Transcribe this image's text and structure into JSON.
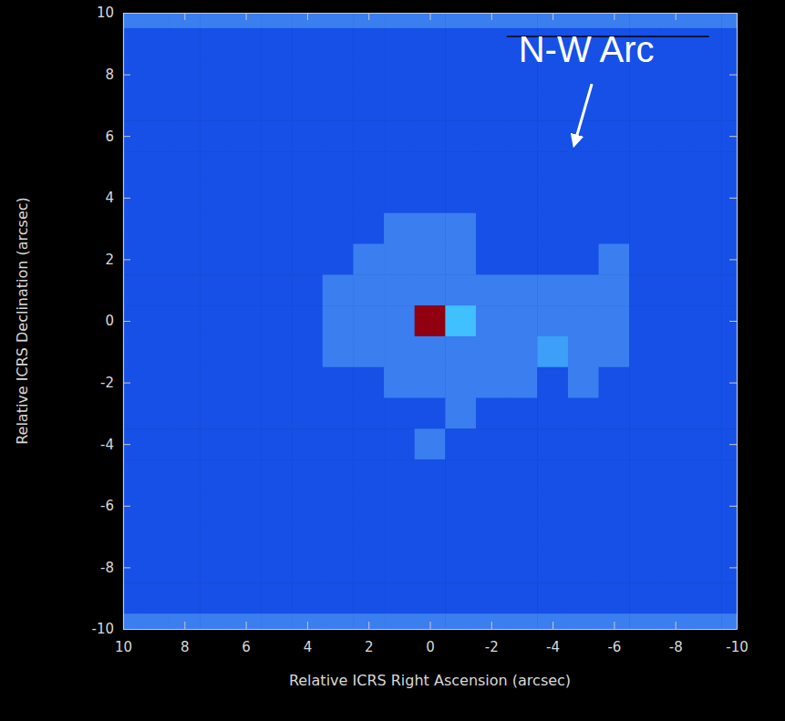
{
  "chart_data": {
    "type": "heatmap",
    "xlabel": "Relative ICRS Right Ascension (arcsec)",
    "ylabel": "Relative ICRS Declination (arcsec)",
    "xlim": [
      10,
      -10
    ],
    "ylim": [
      -10,
      10
    ],
    "xticks": [
      10,
      8,
      6,
      4,
      2,
      0,
      -2,
      -4,
      -6,
      -8,
      -10
    ],
    "yticks": [
      -10,
      -8,
      -6,
      -4,
      -2,
      0,
      2,
      4,
      6,
      8,
      10
    ],
    "x": [
      10,
      9,
      8,
      7,
      6,
      5,
      4,
      3,
      2,
      1,
      0,
      -1,
      -2,
      -3,
      -4,
      -5,
      -6,
      -7,
      -8,
      -9,
      -10
    ],
    "y": [
      10,
      9,
      8,
      7,
      6,
      5,
      4,
      3,
      2,
      1,
      0,
      -1,
      -2,
      -3,
      -4,
      -5,
      -6,
      -7,
      -8,
      -9,
      -10
    ],
    "z": [
      [
        1,
        1,
        1,
        1,
        1,
        1,
        1,
        1,
        1,
        1,
        1,
        1,
        1,
        1,
        1,
        1,
        1,
        1,
        1,
        1,
        1
      ],
      [
        0,
        0,
        0,
        0,
        0,
        0,
        0,
        0,
        0,
        0,
        0,
        0,
        0,
        0,
        0,
        0,
        0,
        0,
        0,
        0,
        0
      ],
      [
        0,
        0,
        0,
        0,
        0,
        0,
        0,
        0,
        0,
        0,
        0,
        0,
        0,
        0,
        0,
        0,
        0,
        0,
        0,
        0,
        0
      ],
      [
        0,
        0,
        0,
        0,
        0,
        0,
        0,
        0,
        0,
        0,
        0,
        0,
        0,
        0,
        0,
        0,
        0,
        0,
        0,
        0,
        0
      ],
      [
        0,
        0,
        0,
        0,
        0,
        0,
        0,
        0,
        0,
        0,
        0,
        0,
        0,
        0,
        0,
        0,
        0,
        0,
        0,
        0,
        0
      ],
      [
        0,
        0,
        0,
        0,
        0,
        0,
        0,
        0,
        0,
        0,
        0,
        0,
        0,
        0,
        0,
        0,
        0,
        0,
        0,
        0,
        0
      ],
      [
        0,
        0,
        0,
        0,
        0,
        0,
        0,
        0,
        0,
        0,
        0,
        0,
        0,
        0,
        0,
        0,
        0,
        0,
        0,
        0,
        0
      ],
      [
        0,
        0,
        0,
        0,
        0,
        0,
        0,
        0,
        0,
        1,
        1,
        1,
        0,
        0,
        0,
        0,
        0,
        0,
        0,
        0,
        0
      ],
      [
        0,
        0,
        0,
        0,
        0,
        0,
        0,
        0,
        1,
        1,
        1,
        1,
        0,
        0,
        0,
        0,
        1,
        0,
        0,
        0,
        0
      ],
      [
        0,
        0,
        0,
        0,
        0,
        0,
        0,
        1,
        1,
        1,
        1,
        1,
        1,
        1,
        1,
        1,
        1,
        0,
        0,
        0,
        0
      ],
      [
        0,
        0,
        0,
        0,
        0,
        0,
        0,
        1,
        1,
        1,
        10,
        3,
        1,
        1,
        1,
        1,
        1,
        0,
        0,
        0,
        0
      ],
      [
        0,
        0,
        0,
        0,
        0,
        0,
        0,
        1,
        1,
        1,
        1,
        1,
        1,
        1,
        2,
        1,
        1,
        0,
        0,
        0,
        0
      ],
      [
        0,
        0,
        0,
        0,
        0,
        0,
        0,
        0,
        0,
        1,
        1,
        1,
        1,
        1,
        0,
        1,
        0,
        0,
        0,
        0,
        0
      ],
      [
        0,
        0,
        0,
        0,
        0,
        0,
        0,
        0,
        0,
        0,
        0,
        1,
        0,
        0,
        0,
        0,
        0,
        0,
        0,
        0,
        0
      ],
      [
        0,
        0,
        0,
        0,
        0,
        0,
        0,
        0,
        0,
        0,
        1,
        0,
        0,
        0,
        0,
        0,
        0,
        0,
        0,
        0,
        0
      ],
      [
        0,
        0,
        0,
        0,
        0,
        0,
        0,
        0,
        0,
        0,
        0,
        0,
        0,
        0,
        0,
        0,
        0,
        0,
        0,
        0,
        0
      ],
      [
        0,
        0,
        0,
        0,
        0,
        0,
        0,
        0,
        0,
        0,
        0,
        0,
        0,
        0,
        0,
        0,
        0,
        0,
        0,
        0,
        0
      ],
      [
        0,
        0,
        0,
        0,
        0,
        0,
        0,
        0,
        0,
        0,
        0,
        0,
        0,
        0,
        0,
        0,
        0,
        0,
        0,
        0,
        0
      ],
      [
        0,
        0,
        0,
        0,
        0,
        0,
        0,
        0,
        0,
        0,
        0,
        0,
        0,
        0,
        0,
        0,
        0,
        0,
        0,
        0,
        0
      ],
      [
        0,
        0,
        0,
        0,
        0,
        0,
        0,
        0,
        0,
        0,
        0,
        0,
        0,
        0,
        0,
        0,
        0,
        0,
        0,
        0,
        0
      ],
      [
        1,
        1,
        1,
        1,
        1,
        1,
        1,
        1,
        1,
        1,
        1,
        1,
        1,
        1,
        1,
        1,
        1,
        1,
        1,
        1,
        1
      ]
    ],
    "annotations": [
      {
        "text": "N-W Arc",
        "x": -5.1,
        "y": 8.4,
        "arrow_x": -4.7,
        "arrow_y": 5.7
      }
    ]
  }
}
